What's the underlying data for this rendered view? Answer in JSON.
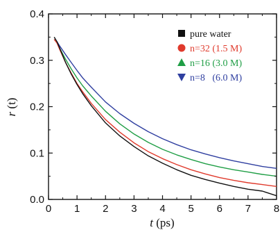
{
  "chart_data": {
    "type": "line",
    "xlabel_var": "t",
    "xlabel_unit": " (ps)",
    "ylabel_var": "r",
    "ylabel_arg": " (t)",
    "xlim": [
      0,
      8
    ],
    "ylim": [
      0,
      0.4
    ],
    "xticks": [
      "0",
      "1",
      "2",
      "3",
      "4",
      "5",
      "6",
      "7",
      "8"
    ],
    "yticks": [
      "0.0",
      "0.1",
      "0.2",
      "0.3",
      "0.4"
    ],
    "grid": false,
    "legend_position": "top-right",
    "series": [
      {
        "name": "pure water",
        "color": "#111111",
        "marker": "square",
        "x": [
          0.2,
          0.3,
          0.4,
          0.6,
          0.8,
          1.0,
          1.2,
          1.5,
          2.0,
          2.5,
          3.0,
          3.5,
          4.0,
          4.5,
          5.0,
          5.5,
          6.0,
          6.5,
          7.0,
          7.5,
          8.0
        ],
        "y": [
          0.35,
          0.34,
          0.325,
          0.295,
          0.27,
          0.248,
          0.228,
          0.202,
          0.165,
          0.137,
          0.114,
          0.094,
          0.078,
          0.064,
          0.052,
          0.043,
          0.035,
          0.028,
          0.022,
          0.018,
          0.008
        ]
      },
      {
        "name": "n=32 (1.5 M)",
        "color": "#e03a2c",
        "marker": "circle",
        "x": [
          0.2,
          0.3,
          0.4,
          0.6,
          0.8,
          1.0,
          1.2,
          1.5,
          2.0,
          2.5,
          3.0,
          3.5,
          4.0,
          4.5,
          5.0,
          5.5,
          6.0,
          6.5,
          7.0,
          7.5,
          8.0
        ],
        "y": [
          0.345,
          0.337,
          0.322,
          0.295,
          0.272,
          0.25,
          0.232,
          0.207,
          0.172,
          0.145,
          0.122,
          0.103,
          0.088,
          0.075,
          0.064,
          0.055,
          0.047,
          0.041,
          0.036,
          0.032,
          0.028
        ]
      },
      {
        "name": "n=16 (3.0 M)",
        "color": "#1f9e45",
        "marker": "triangle-up",
        "x": [
          0.2,
          0.3,
          0.4,
          0.6,
          0.8,
          1.0,
          1.2,
          1.5,
          2.0,
          2.5,
          3.0,
          3.5,
          4.0,
          4.5,
          5.0,
          5.5,
          6.0,
          6.5,
          7.0,
          7.5,
          8.0
        ],
        "y": [
          0.345,
          0.338,
          0.325,
          0.302,
          0.281,
          0.262,
          0.245,
          0.223,
          0.19,
          0.163,
          0.141,
          0.123,
          0.108,
          0.096,
          0.086,
          0.077,
          0.07,
          0.064,
          0.059,
          0.054,
          0.05
        ]
      },
      {
        "name": "n=8   (6.0 M)",
        "color": "#2f3fa0",
        "marker": "triangle-down",
        "x": [
          0.2,
          0.3,
          0.4,
          0.6,
          0.8,
          1.0,
          1.2,
          1.5,
          2.0,
          2.5,
          3.0,
          3.5,
          4.0,
          4.5,
          5.0,
          5.5,
          6.0,
          6.5,
          7.0,
          7.5,
          8.0
        ],
        "y": [
          0.345,
          0.34,
          0.33,
          0.312,
          0.295,
          0.278,
          0.262,
          0.242,
          0.21,
          0.185,
          0.164,
          0.146,
          0.131,
          0.118,
          0.107,
          0.098,
          0.09,
          0.083,
          0.077,
          0.071,
          0.067
        ]
      }
    ]
  }
}
